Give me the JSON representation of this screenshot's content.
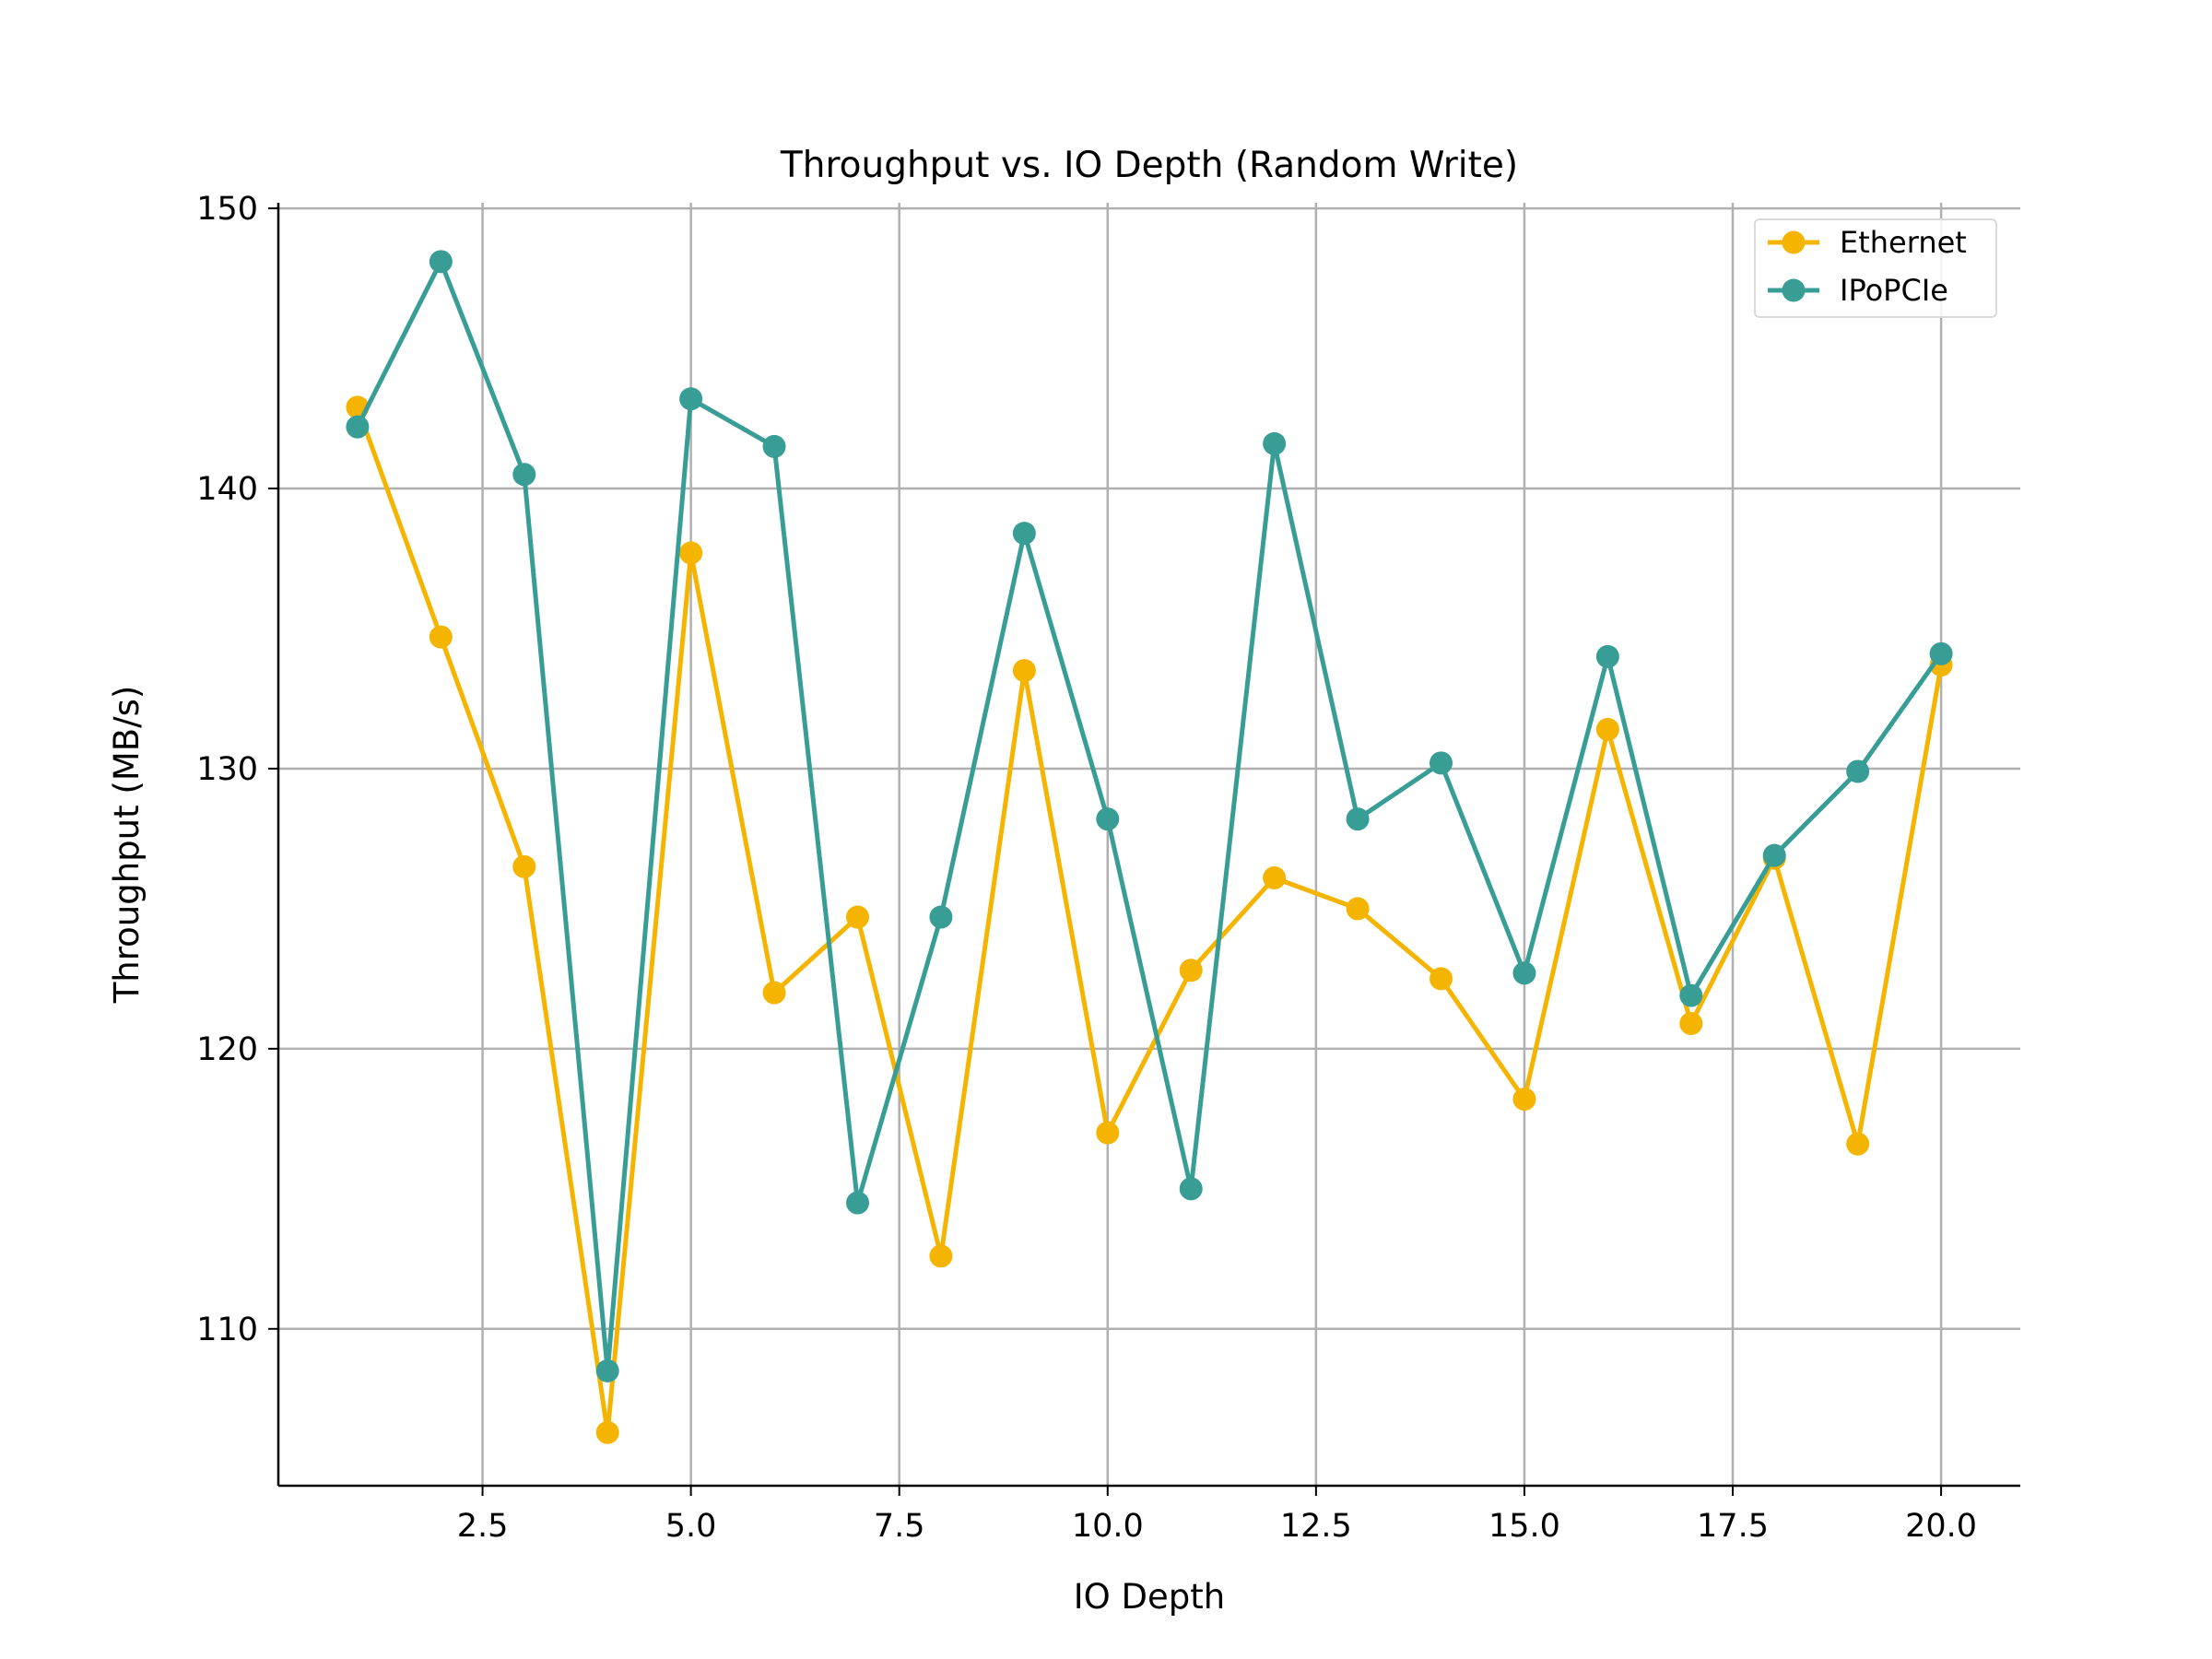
{
  "chart_data": {
    "type": "line",
    "title": "Throughput vs. IO Depth (Random Write)",
    "xlabel": "IO Depth",
    "ylabel": "Throughput (MB/s)",
    "x": [
      1,
      2,
      3,
      4,
      5,
      6,
      7,
      8,
      9,
      10,
      11,
      12,
      13,
      14,
      15,
      16,
      17,
      18,
      19,
      20
    ],
    "xlim": [
      0.05,
      20.95
    ],
    "ylim": [
      104.4,
      150.2
    ],
    "xticks": [
      2.5,
      5.0,
      7.5,
      10.0,
      12.5,
      15.0,
      17.5,
      20.0
    ],
    "xtick_labels": [
      "2.5",
      "5.0",
      "7.5",
      "10.0",
      "12.5",
      "15.0",
      "17.5",
      "20.0"
    ],
    "yticks": [
      110,
      120,
      130,
      140,
      150
    ],
    "ytick_labels": [
      "110",
      "120",
      "130",
      "140",
      "150"
    ],
    "grid": true,
    "legend_position": "top-right",
    "series": [
      {
        "name": "Ethernet",
        "color": "#f5b400",
        "marker": "circle",
        "values": [
          142.9,
          134.7,
          126.5,
          106.3,
          137.7,
          122.0,
          124.7,
          112.6,
          133.5,
          117.0,
          122.8,
          126.1,
          125.0,
          122.5,
          118.2,
          131.4,
          120.9,
          126.8,
          116.6,
          133.7
        ]
      },
      {
        "name": "IPoPCIe",
        "color": "#389e95",
        "marker": "circle",
        "values": [
          142.2,
          148.1,
          140.5,
          108.5,
          143.2,
          141.5,
          114.5,
          124.7,
          138.4,
          128.2,
          115.0,
          141.6,
          128.2,
          130.2,
          122.7,
          134.0,
          121.9,
          126.9,
          129.9,
          134.1
        ]
      }
    ]
  }
}
